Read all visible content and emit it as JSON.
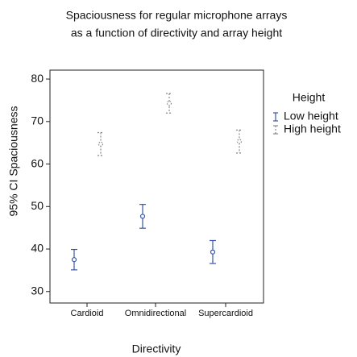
{
  "chart_data": {
    "type": "errorbar",
    "title": [
      "Spaciousness for regular microphone arrays",
      "as a function of directivity and array height"
    ],
    "x_label": "Directivity",
    "y_label": "95% CI Spaciousness",
    "categories": [
      "Cardioid",
      "Omnidirectional",
      "Supercardioid"
    ],
    "legend_title": "Height",
    "legend_position": "right",
    "series": [
      {
        "name": "Low height",
        "color": "#3a55a5",
        "dashed": false,
        "values": [
          37.5,
          47.7,
          39.3
        ],
        "errors": [
          2.4,
          2.8,
          2.7
        ]
      },
      {
        "name": "High height",
        "color": "#888888",
        "dashed": true,
        "values": [
          64.7,
          74.3,
          65.3
        ],
        "errors": [
          2.7,
          2.3,
          2.7
        ]
      }
    ],
    "ylim": [
      27.3,
      82.1
    ],
    "yticks": [
      30,
      40,
      50,
      60,
      70,
      80
    ]
  }
}
